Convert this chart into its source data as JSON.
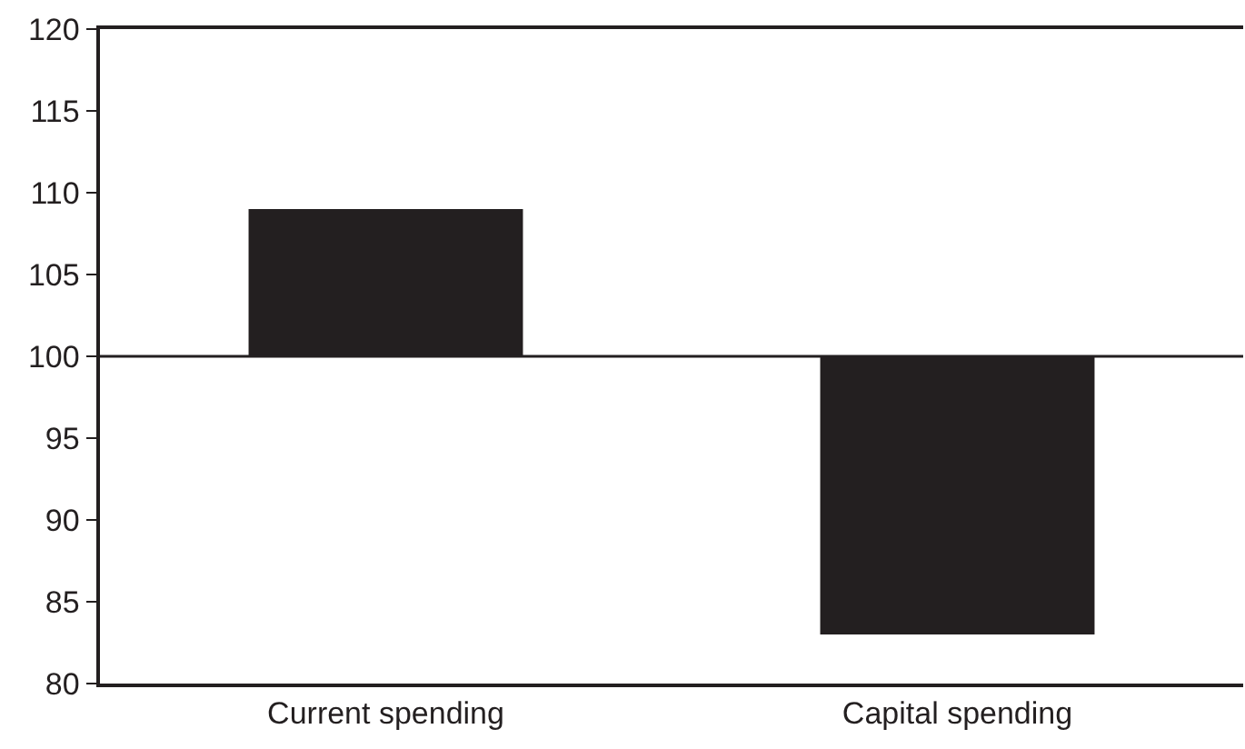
{
  "chart_data": {
    "type": "bar",
    "categories": [
      "Current spending",
      "Capital spending"
    ],
    "base": [
      100,
      100
    ],
    "values": [
      9,
      -17
    ],
    "color": "#231f20",
    "ylim": [
      80,
      120
    ],
    "yticks": [
      80,
      85,
      90,
      95,
      100,
      105,
      110,
      115,
      120
    ],
    "ref_lines": [
      {
        "axis": "y",
        "value": 100,
        "color": "#231f20"
      }
    ]
  }
}
